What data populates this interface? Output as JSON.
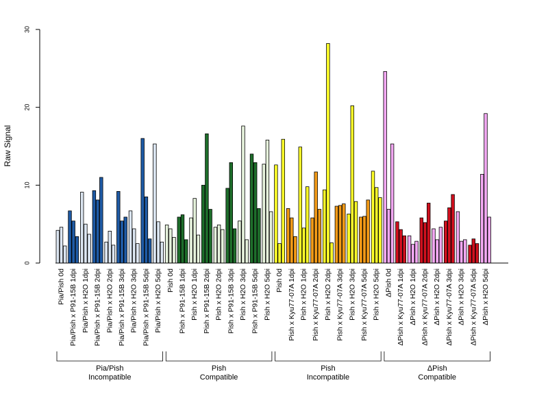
{
  "chart_data": {
    "type": "bar",
    "ylabel": "Raw Signal",
    "xlabel": "",
    "ylim": [
      0,
      30
    ],
    "yticks": [
      0,
      10,
      20,
      30
    ],
    "grid": false,
    "colors": {
      "Pia/Pish Incompatible": {
        "light": "#dbe5f1",
        "dark": "#1f5ba6"
      },
      "Pish Compatible": {
        "light": "#e6f2dc",
        "dark": "#1e6e2b"
      },
      "Pish Incompatible": {
        "light": "#ffff2a",
        "dark": "#f29a17"
      },
      "ΔPish Compatible": {
        "light": "#f2a8f2",
        "dark": "#d0101e"
      }
    },
    "groups": [
      {
        "label_line1": "Pia/Pish",
        "label_line2": "Incompatible",
        "light": "#dbe5f1",
        "dark": "#1f5ba6",
        "categories": [
          {
            "label": "Pia/Pish 0d",
            "shade": "light",
            "values": [
              4.2,
              4.6,
              2.2
            ]
          },
          {
            "label": "Pia/Pish x P91-15B 1dpi",
            "shade": "dark",
            "values": [
              6.7,
              5.4,
              3.4
            ]
          },
          {
            "label": "Pia/Pish x H2O 1dpi",
            "shade": "light",
            "values": [
              9.1,
              5.0,
              3.7
            ]
          },
          {
            "label": "Pia/Pish x P91-15B 2dpi",
            "shade": "dark",
            "values": [
              9.3,
              8.1,
              11.0
            ]
          },
          {
            "label": "Pia/Pish x H2O 2dpi",
            "shade": "light",
            "values": [
              2.7,
              4.1,
              2.3
            ]
          },
          {
            "label": "Pia/Pish x P91-15B 3dpi",
            "shade": "dark",
            "values": [
              9.2,
              5.4,
              5.9
            ]
          },
          {
            "label": "Pia/Pish x H2O 3dpi",
            "shade": "light",
            "values": [
              6.7,
              4.4,
              2.5
            ]
          },
          {
            "label": "Pia/Pish x P91-15B 5dpi",
            "shade": "dark",
            "values": [
              16.0,
              8.5,
              3.1
            ]
          },
          {
            "label": "Pia/Pish x H2O 5dpi",
            "shade": "light",
            "values": [
              15.3,
              5.3,
              2.7
            ]
          }
        ]
      },
      {
        "label_line1": "Pish",
        "label_line2": "Compatible",
        "light": "#e6f2dc",
        "dark": "#1e6e2b",
        "categories": [
          {
            "label": "Pish 0d",
            "shade": "light",
            "values": [
              4.9,
              4.4,
              3.3
            ]
          },
          {
            "label": "Pish x P91-15B 1dpi",
            "shade": "dark",
            "values": [
              5.9,
              6.2,
              3.0
            ]
          },
          {
            "label": "Pish x H2O 1dpi",
            "shade": "light",
            "values": [
              5.8,
              8.3,
              3.6
            ]
          },
          {
            "label": "Pish x P91-15B 2dpi",
            "shade": "dark",
            "values": [
              10.0,
              16.6,
              6.9
            ]
          },
          {
            "label": "Pish x H2O 2dpi",
            "shade": "light",
            "values": [
              4.6,
              4.9,
              4.3
            ]
          },
          {
            "label": "Pish x P91-15B 3dpi",
            "shade": "dark",
            "values": [
              9.6,
              12.9,
              4.4
            ]
          },
          {
            "label": "Pish x H2O 3dpi",
            "shade": "light",
            "values": [
              5.4,
              17.6,
              3.0
            ]
          },
          {
            "label": "Pish x P91-15B 5dpi",
            "shade": "dark",
            "values": [
              14.0,
              12.9,
              7.0
            ]
          },
          {
            "label": "Pish x H2O 5dpi",
            "shade": "light",
            "values": [
              12.7,
              15.8,
              6.6
            ]
          }
        ]
      },
      {
        "label_line1": "Pish",
        "label_line2": "Incompatible",
        "light": "#ffff2a",
        "dark": "#f29a17",
        "categories": [
          {
            "label": "Pish 0d",
            "shade": "light",
            "values": [
              12.6,
              2.5,
              15.9
            ]
          },
          {
            "label": "Pish x Kyu77-07A 1dpi",
            "shade": "dark",
            "values": [
              7.0,
              5.8,
              3.4
            ]
          },
          {
            "label": "Pish x H2O 1dpi",
            "shade": "light",
            "values": [
              14.9,
              4.5,
              9.8
            ]
          },
          {
            "label": "Pish x Kyu77-07A 2dpi",
            "shade": "dark",
            "values": [
              5.8,
              11.7,
              6.9
            ]
          },
          {
            "label": "Pish x H2O 2dpi",
            "shade": "light",
            "values": [
              9.4,
              28.2,
              2.6
            ]
          },
          {
            "label": "Pish x Kyu77-07A 3dpi",
            "shade": "dark",
            "values": [
              7.3,
              7.4,
              7.6
            ]
          },
          {
            "label": "Pish x H2O 3dpi",
            "shade": "light",
            "values": [
              6.3,
              20.2,
              7.9
            ]
          },
          {
            "label": "Pish x Kyu77-07A 5dpi",
            "shade": "dark",
            "values": [
              5.9,
              6.0,
              8.1
            ]
          },
          {
            "label": "Pish x H2O 5dpi",
            "shade": "light",
            "values": [
              11.8,
              9.7,
              8.4
            ]
          }
        ]
      },
      {
        "label_line1": "ΔPish",
        "label_line2": "Compatible",
        "light": "#f2a8f2",
        "dark": "#d0101e",
        "categories": [
          {
            "label": "ΔPish 0d",
            "shade": "light",
            "values": [
              24.6,
              6.9,
              15.3
            ]
          },
          {
            "label": "ΔPish x Kyu77-07A 1dpi",
            "shade": "dark",
            "values": [
              5.3,
              4.3,
              3.5
            ]
          },
          {
            "label": "ΔPish x H2O 1dpi",
            "shade": "light",
            "values": [
              3.5,
              2.4,
              2.8
            ]
          },
          {
            "label": "ΔPish x Kyu77-07A 2dpi",
            "shade": "dark",
            "values": [
              5.8,
              5.2,
              7.7
            ]
          },
          {
            "label": "ΔPish x H2O 2dpi",
            "shade": "light",
            "values": [
              4.4,
              3.0,
              4.6
            ]
          },
          {
            "label": "ΔPish x Kyu77-07A 3dpi",
            "shade": "dark",
            "values": [
              5.4,
              7.1,
              8.8
            ]
          },
          {
            "label": "ΔPish x H2O 3dpi",
            "shade": "light",
            "values": [
              6.6,
              2.8,
              3.0
            ]
          },
          {
            "label": "ΔPish x Kyu77-07A 5dpi",
            "shade": "dark",
            "values": [
              2.3,
              3.1,
              2.5
            ]
          },
          {
            "label": "ΔPish x H2O 5dpi",
            "shade": "light",
            "values": [
              11.4,
              19.2,
              5.9
            ]
          }
        ]
      }
    ]
  }
}
